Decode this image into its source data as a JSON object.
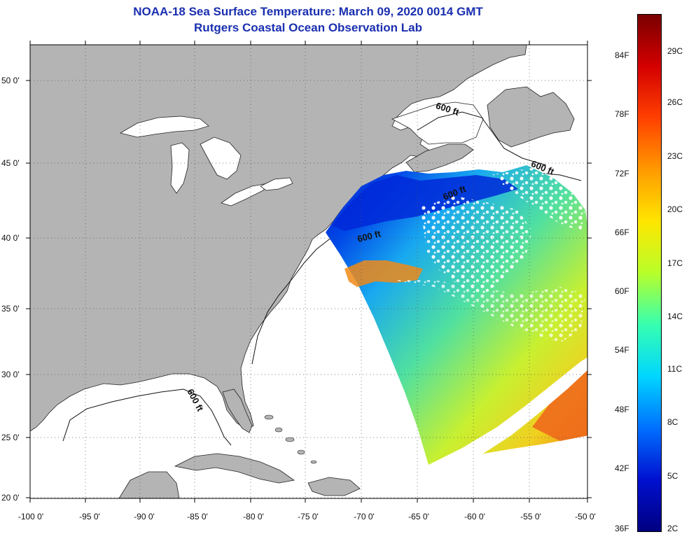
{
  "header": {
    "title": "NOAA-18 Sea Surface Temperature:  March 09, 2020 0014 GMT",
    "subtitle": "Rutgers Coastal Ocean Observation Lab"
  },
  "map": {
    "lat_labels": [
      "50 0'",
      "45 0'",
      "40 0'",
      "35 0'",
      "30 0'",
      "25 0'",
      "20 0'"
    ],
    "lon_labels": [
      "-100 0'",
      "-95 0'",
      "-90 0'",
      "-85 0'",
      "-80 0'",
      "-75 0'",
      "-70 0'",
      "-65 0'",
      "-60 0'",
      "-55 0'",
      "-50 0'"
    ],
    "contour_label": "600 ft",
    "colors": {
      "land": "#b4b4b4",
      "ocean_no_data": "#ffffff",
      "title_blue": "#1a2fb0"
    }
  },
  "colorbar": {
    "fahrenheit_labels": [
      "84F",
      "78F",
      "72F",
      "66F",
      "60F",
      "54F",
      "48F",
      "42F",
      "36F"
    ],
    "celsius_labels": [
      "29C",
      "26C",
      "23C",
      "20C",
      "17C",
      "14C",
      "11C",
      "8C",
      "5C",
      "2C"
    ],
    "colors": [
      "#7a0000",
      "#d40000",
      "#ff4000",
      "#ff9a00",
      "#ffe600",
      "#b8ff2a",
      "#36ffb0",
      "#00d6ff",
      "#0070ff",
      "#0010d0",
      "#000080"
    ]
  }
}
